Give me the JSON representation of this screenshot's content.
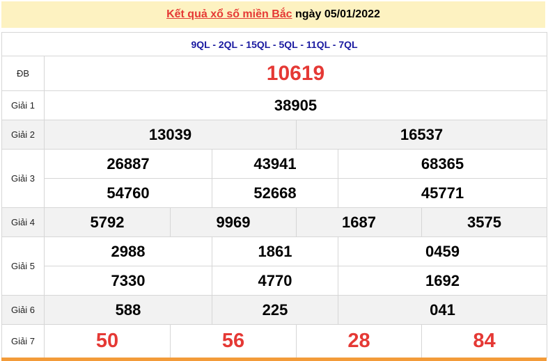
{
  "header": {
    "title_link": "Kết quả xổ số miền Bắc",
    "date_text": "ngày 05/01/2022"
  },
  "codes": "9QL - 2QL - 15QL - 5QL - 11QL - 7QL",
  "prizes": {
    "db": {
      "label": "ĐB",
      "values": [
        "10619"
      ]
    },
    "g1": {
      "label": "Giải 1",
      "values": [
        "38905"
      ]
    },
    "g2": {
      "label": "Giải 2",
      "values": [
        "13039",
        "16537"
      ]
    },
    "g3": {
      "label": "Giải 3",
      "values": [
        "26887",
        "43941",
        "68365",
        "54760",
        "52668",
        "45771"
      ]
    },
    "g4": {
      "label": "Giải 4",
      "values": [
        "5792",
        "9969",
        "1687",
        "3575"
      ]
    },
    "g5": {
      "label": "Giải 5",
      "values": [
        "2988",
        "1861",
        "0459",
        "7330",
        "4770",
        "1692"
      ]
    },
    "g6": {
      "label": "Giải 6",
      "values": [
        "588",
        "225",
        "041"
      ]
    },
    "g7": {
      "label": "Giải 7",
      "values": [
        "50",
        "56",
        "28",
        "84"
      ]
    }
  },
  "colors": {
    "accent_red": "#e53935",
    "header_bg": "#fdf2c1",
    "code_blue": "#1a1aa0",
    "bottom_bar": "#f39b39"
  }
}
